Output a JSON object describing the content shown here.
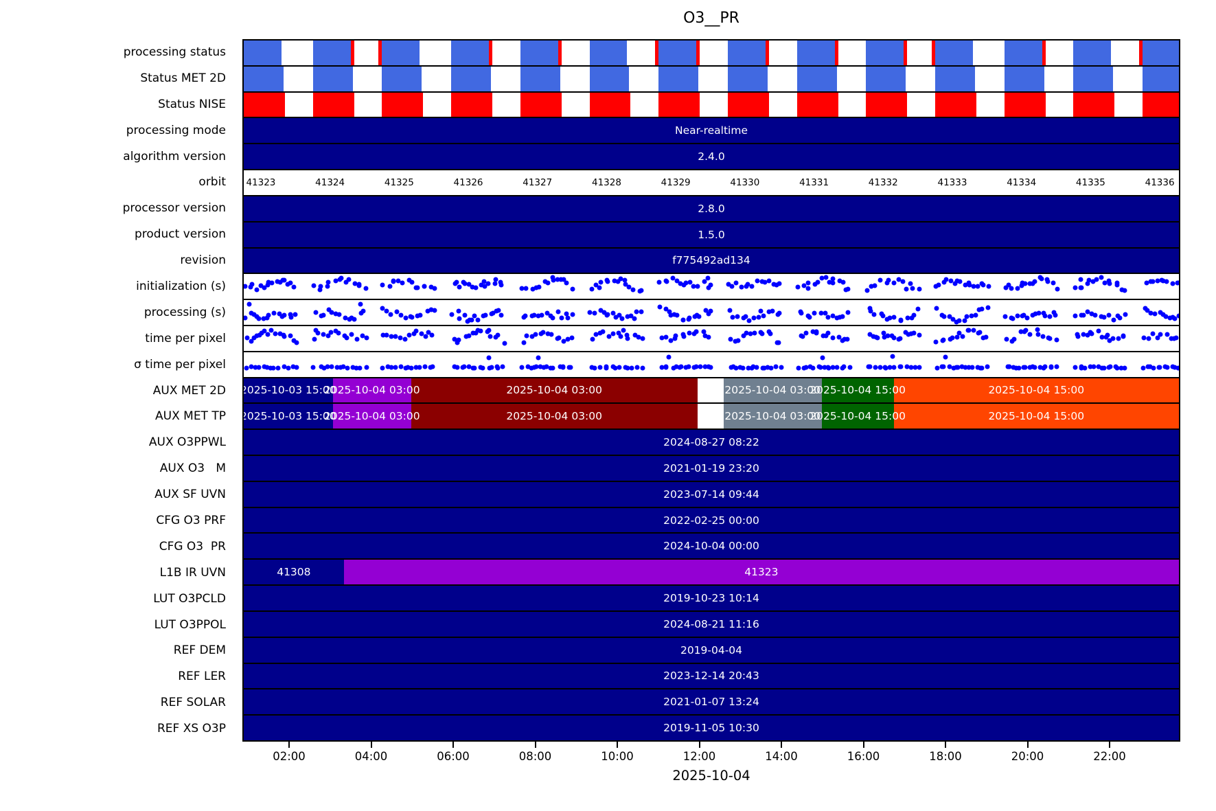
{
  "colors": {
    "navy": "#00008B",
    "royal_blue": "#4169E1",
    "red": "#FF0000",
    "dark_red": "#8B0000",
    "violet": "#9400D3",
    "slate_gray": "#708090",
    "dark_green": "#006400",
    "orange_red": "#FF4500",
    "scatter_dot": "#0000FF",
    "bar_text": "#FFFFFF",
    "axis_text": "#000000"
  },
  "scatter_config": {
    "seed": 12345,
    "clusters": 14,
    "period_pct": 7.394,
    "cluster_offset_pct": 0.25,
    "cluster_width_pct": 5.3,
    "dots_per_cluster": 13
  },
  "block_config": {
    "period_pct": 7.394,
    "count": 14,
    "red_mark_width_pct": 0.37
  },
  "chart_data": {
    "type": "table",
    "title": "O3__PR",
    "xlabel": "2025-10-04",
    "x_ticks": [
      "02:00",
      "04:00",
      "06:00",
      "08:00",
      "10:00",
      "12:00",
      "14:00",
      "16:00",
      "18:00",
      "20:00",
      "22:00"
    ],
    "x_tick_start_pct": 4.98,
    "x_tick_step_pct": 8.748,
    "orbit_label_start_pct": 1.83,
    "orbit_label_step_pct": 7.394,
    "rows": [
      {
        "label": "processing status",
        "type": "blocks",
        "color": "#4169E1",
        "block_width_pct": 4.03,
        "red_marks": [
          {
            "block": 1,
            "side": "right"
          },
          {
            "block": 2,
            "side": "left"
          },
          {
            "block": 3,
            "side": "right"
          },
          {
            "block": 4,
            "side": "right"
          },
          {
            "block": 6,
            "side": "left"
          },
          {
            "block": 6,
            "side": "right"
          },
          {
            "block": 7,
            "side": "right"
          },
          {
            "block": 8,
            "side": "right"
          },
          {
            "block": 9,
            "side": "right"
          },
          {
            "block": 10,
            "side": "left"
          },
          {
            "block": 11,
            "side": "right"
          },
          {
            "block": 13,
            "side": "left"
          }
        ]
      },
      {
        "label": "Status MET 2D",
        "type": "blocks",
        "color": "#4169E1",
        "block_width_pct": 4.25,
        "red_marks": []
      },
      {
        "label": "Status NISE",
        "type": "blocks",
        "color": "#FF0000",
        "block_width_pct": 4.4,
        "red_marks": []
      },
      {
        "label": "processing mode",
        "type": "bar",
        "color": "#00008B",
        "text": "Near-realtime"
      },
      {
        "label": "algorithm version",
        "type": "bar",
        "color": "#00008B",
        "text": "2.4.0"
      },
      {
        "label": "orbit",
        "type": "orbit",
        "values": [
          "41323",
          "41324",
          "41325",
          "41326",
          "41327",
          "41328",
          "41329",
          "41330",
          "41331",
          "41332",
          "41333",
          "41334",
          "41335",
          "41336"
        ]
      },
      {
        "label": "processor version",
        "type": "bar",
        "color": "#00008B",
        "text": "2.8.0"
      },
      {
        "label": "product version",
        "type": "bar",
        "color": "#00008B",
        "text": "1.5.0"
      },
      {
        "label": "revision",
        "type": "bar",
        "color": "#00008B",
        "text": "f775492ad134"
      },
      {
        "label": "initialization (s)",
        "type": "scatter",
        "shape": "wave"
      },
      {
        "label": "processing (s)",
        "type": "scatter",
        "shape": "wave"
      },
      {
        "label": "time per pixel",
        "type": "scatter",
        "shape": "wave"
      },
      {
        "label": "σ time per pixel",
        "type": "scatter",
        "shape": "flat"
      },
      {
        "label": "AUX MET 2D",
        "type": "segments",
        "segments": [
          {
            "start": 0,
            "end": 9.52,
            "color": "#00008B",
            "text": "2025-10-03 15:00"
          },
          {
            "start": 9.52,
            "end": 17.9,
            "color": "#9400D3",
            "text": "2025-10-04 03:00"
          },
          {
            "start": 17.9,
            "end": 48.5,
            "color": "#8B0000",
            "text": "2025-10-04 03:00"
          },
          {
            "start": 48.5,
            "end": 51.3,
            "color": "#FFFFFF",
            "text": ""
          },
          {
            "start": 51.3,
            "end": 61.8,
            "color": "#708090",
            "text": "2025-10-04 03:00"
          },
          {
            "start": 61.8,
            "end": 69.5,
            "color": "#006400",
            "text": "2025-10-04 15:00"
          },
          {
            "start": 69.5,
            "end": 100,
            "color": "#FF4500",
            "text": "2025-10-04 15:00"
          }
        ]
      },
      {
        "label": "AUX MET TP",
        "type": "segments",
        "segments": [
          {
            "start": 0,
            "end": 9.52,
            "color": "#00008B",
            "text": "2025-10-03 15:00"
          },
          {
            "start": 9.52,
            "end": 17.9,
            "color": "#9400D3",
            "text": "2025-10-04 03:00"
          },
          {
            "start": 17.9,
            "end": 48.5,
            "color": "#8B0000",
            "text": "2025-10-04 03:00"
          },
          {
            "start": 48.5,
            "end": 51.3,
            "color": "#FFFFFF",
            "text": ""
          },
          {
            "start": 51.3,
            "end": 61.8,
            "color": "#708090",
            "text": "2025-10-04 03:00"
          },
          {
            "start": 61.8,
            "end": 69.5,
            "color": "#006400",
            "text": "2025-10-04 15:00"
          },
          {
            "start": 69.5,
            "end": 100,
            "color": "#FF4500",
            "text": "2025-10-04 15:00"
          }
        ]
      },
      {
        "label": "AUX O3PPWL",
        "type": "bar",
        "color": "#00008B",
        "text": "2024-08-27 08:22"
      },
      {
        "label": "AUX O3   M",
        "type": "bar",
        "color": "#00008B",
        "text": "2021-01-19 23:20"
      },
      {
        "label": "AUX SF UVN",
        "type": "bar",
        "color": "#00008B",
        "text": "2023-07-14 09:44"
      },
      {
        "label": "CFG O3 PRF",
        "type": "bar",
        "color": "#00008B",
        "text": "2022-02-25 00:00"
      },
      {
        "label": "CFG O3  PR",
        "type": "bar",
        "color": "#00008B",
        "text": "2024-10-04 00:00"
      },
      {
        "label": "L1B IR UVN",
        "type": "segments",
        "segments": [
          {
            "start": 0,
            "end": 10.7,
            "color": "#00008B",
            "text": "41308"
          },
          {
            "start": 10.7,
            "end": 100,
            "color": "#9400D3",
            "text": "41323"
          }
        ]
      },
      {
        "label": "LUT O3PCLD",
        "type": "bar",
        "color": "#00008B",
        "text": "2019-10-23 10:14"
      },
      {
        "label": "LUT O3PPOL",
        "type": "bar",
        "color": "#00008B",
        "text": "2024-08-21 11:16"
      },
      {
        "label": "REF DEM",
        "type": "bar",
        "color": "#00008B",
        "text": "2019-04-04"
      },
      {
        "label": "REF LER",
        "type": "bar",
        "color": "#00008B",
        "text": "2023-12-14 20:43"
      },
      {
        "label": "REF SOLAR",
        "type": "bar",
        "color": "#00008B",
        "text": "2021-01-07 13:24"
      },
      {
        "label": "REF XS O3P",
        "type": "bar",
        "color": "#00008B",
        "text": "2019-11-05 10:30"
      }
    ]
  }
}
